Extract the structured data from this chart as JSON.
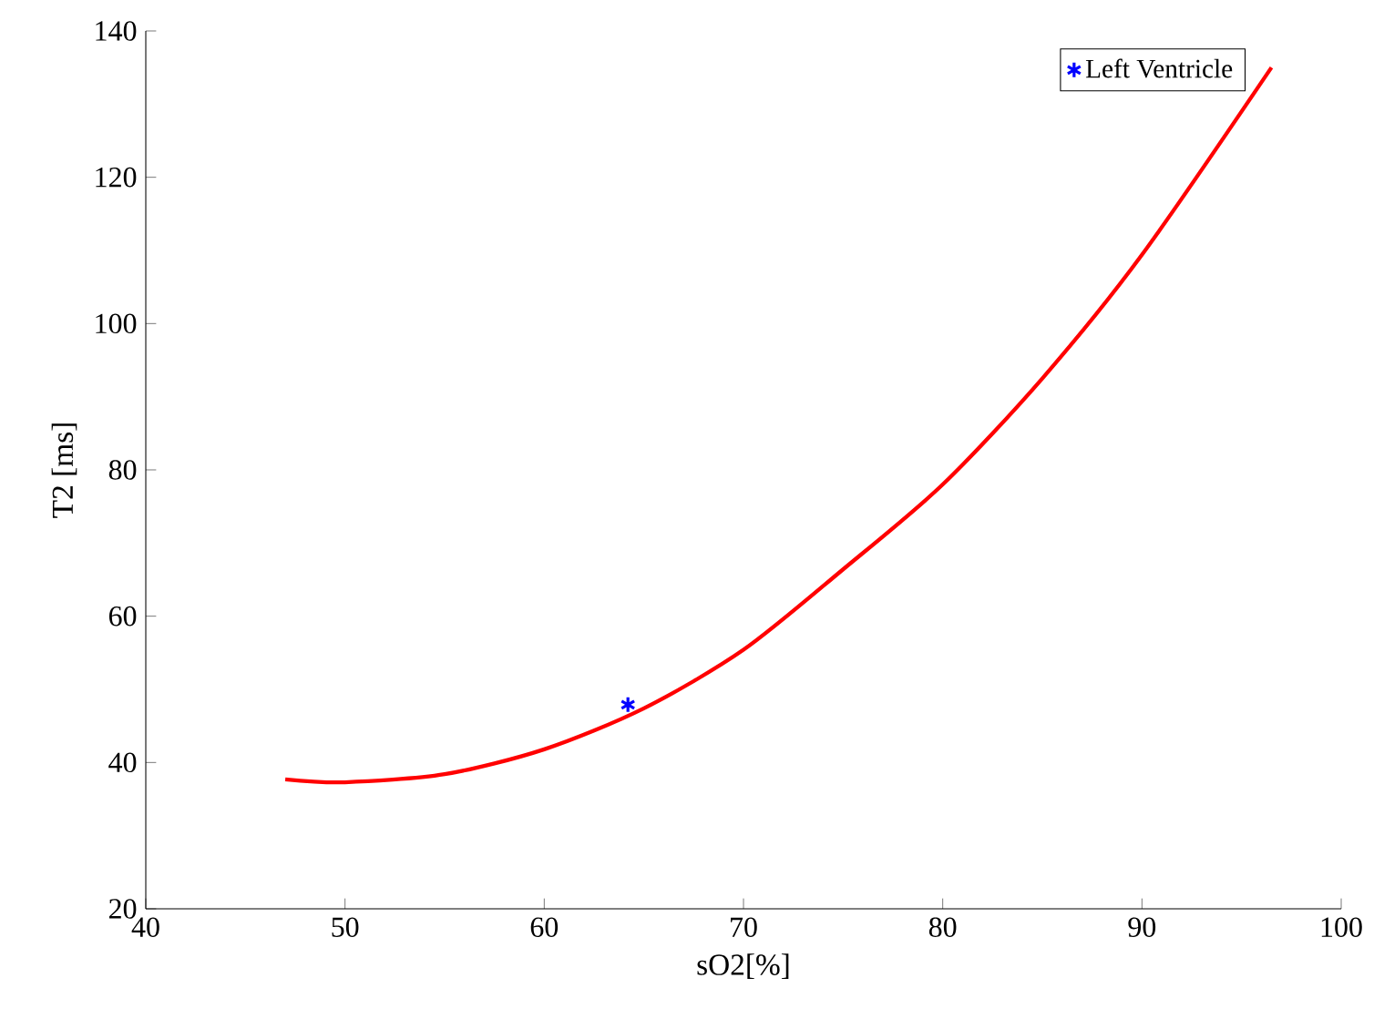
{
  "chart_data": {
    "type": "line",
    "xlabel": "sO2[%]",
    "ylabel": "T2 [ms]",
    "xlim": [
      40,
      100
    ],
    "ylim": [
      20,
      140
    ],
    "xticks": [
      40,
      50,
      60,
      70,
      80,
      90,
      100
    ],
    "yticks": [
      20,
      40,
      60,
      80,
      100,
      120,
      140
    ],
    "grid": false,
    "legend": "top right",
    "series": [
      {
        "color": "#ff0000",
        "marker": "none",
        "line_style": "solid",
        "x": [
          47,
          50,
          55,
          60,
          65,
          70,
          75,
          80,
          85,
          90,
          96.5
        ],
        "values": [
          37.7,
          37.3,
          38.4,
          41.8,
          47.4,
          55.4,
          66.4,
          78.0,
          92.5,
          109.4,
          135.0
        ]
      },
      {
        "type": "scatter",
        "name": "Left Ventricle",
        "color": "#0000ff",
        "marker": "cross",
        "x": [
          64.2
        ],
        "values": [
          47.9
        ]
      }
    ]
  }
}
